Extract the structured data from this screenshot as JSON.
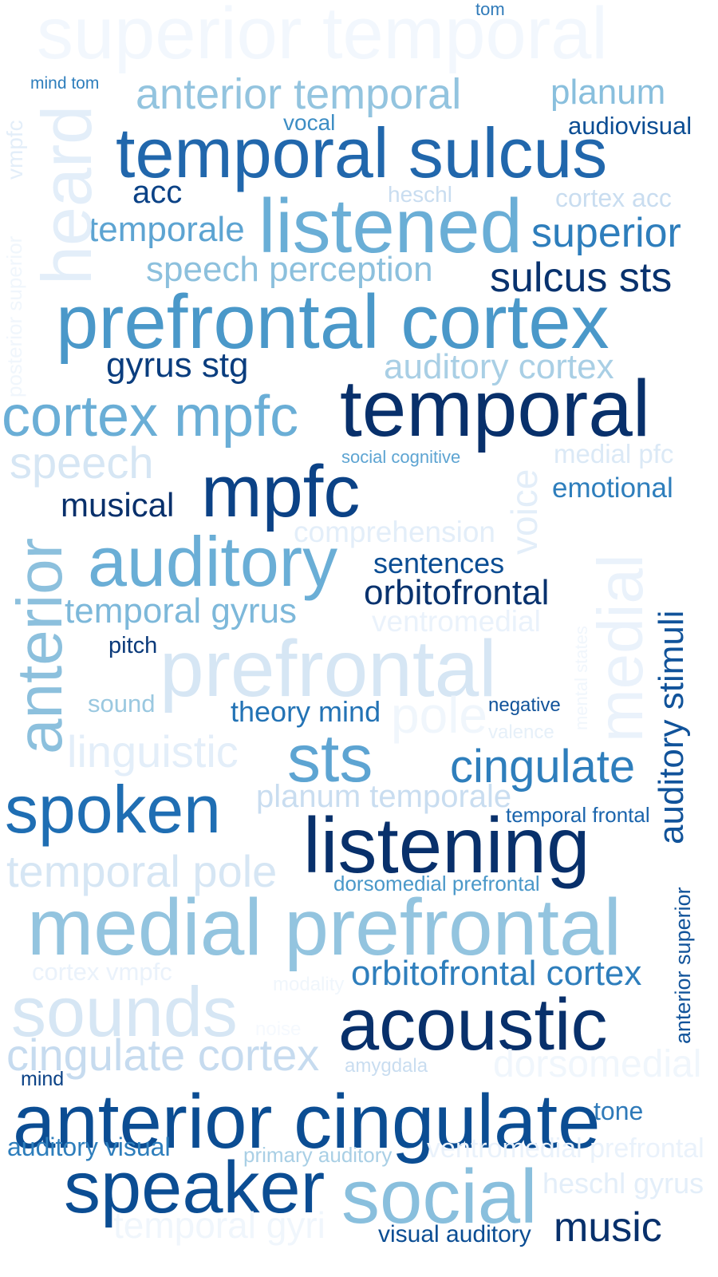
{
  "words": [
    {
      "text": "superior temporal",
      "color": "#f2f7fd"
    },
    {
      "text": "tom",
      "color": "#2f7ab9"
    },
    {
      "text": "mind tom",
      "color": "#2e7ebc"
    },
    {
      "text": "anterior temporal",
      "color": "#93c4df"
    },
    {
      "text": "planum",
      "color": "#89bfdd"
    },
    {
      "text": "vocal",
      "color": "#3d8dc4"
    },
    {
      "text": "audiovisual",
      "color": "#0b4d93"
    },
    {
      "text": "temporal sulcus",
      "color": "#2167ac"
    },
    {
      "text": "acc",
      "color": "#0b4286"
    },
    {
      "text": "heschl",
      "color": "#c9ddf0"
    },
    {
      "text": "cortex acc",
      "color": "#c9ddf0"
    },
    {
      "text": "temporale",
      "color": "#5da4d2"
    },
    {
      "text": "listened",
      "color": "#6aaed6"
    },
    {
      "text": "superior",
      "color": "#2e7ebc"
    },
    {
      "text": "speech perception",
      "color": "#8cc0dd"
    },
    {
      "text": "sulcus sts",
      "color": "#08326e"
    },
    {
      "text": "prefrontal cortex",
      "color": "#4a98c9"
    },
    {
      "text": "gyrus stg",
      "color": "#0a3d7e"
    },
    {
      "text": "auditory cortex",
      "color": "#a9cfe5"
    },
    {
      "text": "cortex mpfc",
      "color": "#6aaed6"
    },
    {
      "text": "temporal",
      "color": "#08306b"
    },
    {
      "text": "speech",
      "color": "#d6e6f4"
    },
    {
      "text": "social cognitive",
      "color": "#5da4d2"
    },
    {
      "text": "medial pfc",
      "color": "#dbe9f6"
    },
    {
      "text": "musical",
      "color": "#08306b"
    },
    {
      "text": "mpfc",
      "color": "#0b4286"
    },
    {
      "text": "emotional",
      "color": "#2e7ebc"
    },
    {
      "text": "comprehension",
      "color": "#e3eef9"
    },
    {
      "text": "auditory",
      "color": "#6aaed6"
    },
    {
      "text": "sentences",
      "color": "#0b4d93"
    },
    {
      "text": "orbitofrontal",
      "color": "#08326e"
    },
    {
      "text": "temporal gyrus",
      "color": "#7db8da"
    },
    {
      "text": "ventromedial",
      "color": "#eaf2fb"
    },
    {
      "text": "pitch",
      "color": "#0b3a7a"
    },
    {
      "text": "prefrontal",
      "color": "#d6e6f4"
    },
    {
      "text": "sound",
      "color": "#9ac8e0"
    },
    {
      "text": "theory mind",
      "color": "#2373b5"
    },
    {
      "text": "pole",
      "color": "#f0f6fc"
    },
    {
      "text": "negative",
      "color": "#11539a"
    },
    {
      "text": "valence",
      "color": "#e6f0f9"
    },
    {
      "text": "linguistic",
      "color": "#e3eef9"
    },
    {
      "text": "sts",
      "color": "#5da4d2"
    },
    {
      "text": "cingulate",
      "color": "#2e7ebc"
    },
    {
      "text": "spoken",
      "color": "#1f6eb3"
    },
    {
      "text": "planum temporale",
      "color": "#c9ddf0"
    },
    {
      "text": "temporal frontal",
      "color": "#1a64ac"
    },
    {
      "text": "listening",
      "color": "#08306b"
    },
    {
      "text": "temporal pole",
      "color": "#d6e6f4"
    },
    {
      "text": "dorsomedial prefrontal",
      "color": "#4a98c9"
    },
    {
      "text": "medial prefrontal",
      "color": "#93c4df"
    },
    {
      "text": "cortex vmpfc",
      "color": "#eaf2fb"
    },
    {
      "text": "modality",
      "color": "#f0f6fc"
    },
    {
      "text": "orbitofrontal cortex",
      "color": "#2e7ebc"
    },
    {
      "text": "sounds",
      "color": "#d6e6f4"
    },
    {
      "text": "noise",
      "color": "#f5f9fe"
    },
    {
      "text": "acoustic",
      "color": "#08306b"
    },
    {
      "text": "cingulate cortex",
      "color": "#c6dbef"
    },
    {
      "text": "amygdala",
      "color": "#c9ddf0"
    },
    {
      "text": "dorsomedial",
      "color": "#f0f6fc"
    },
    {
      "text": "mind",
      "color": "#0b4286"
    },
    {
      "text": "anterior cingulate",
      "color": "#0b4d93"
    },
    {
      "text": "tone",
      "color": "#2f7ab9"
    },
    {
      "text": "auditory visual",
      "color": "#2e7ebc"
    },
    {
      "text": "primary auditory",
      "color": "#a9cfe5"
    },
    {
      "text": "ventromedial prefrontal",
      "color": "#eaf2fb"
    },
    {
      "text": "speaker",
      "color": "#0b4d93"
    },
    {
      "text": "social",
      "color": "#89bfdd"
    },
    {
      "text": "heschl gyrus",
      "color": "#e3eef9"
    },
    {
      "text": "temporal gyri",
      "color": "#f0f6fc"
    },
    {
      "text": "visual auditory",
      "color": "#0b4d93"
    },
    {
      "text": "music",
      "color": "#08306b"
    },
    {
      "text": "heard",
      "color": "#e3eef9"
    },
    {
      "text": "vmpfc",
      "color": "#e3eef9"
    },
    {
      "text": "posterior superior",
      "color": "#f0f6fc"
    },
    {
      "text": "anterior",
      "color": "#8cc0dd"
    },
    {
      "text": "voice",
      "color": "#e3eef9"
    },
    {
      "text": "medial",
      "color": "#eaf2fb"
    },
    {
      "text": "mental states",
      "color": "#f0f6fc"
    },
    {
      "text": "auditory stimuli",
      "color": "#11539a"
    },
    {
      "text": "anterior superior",
      "color": "#11539a"
    }
  ]
}
